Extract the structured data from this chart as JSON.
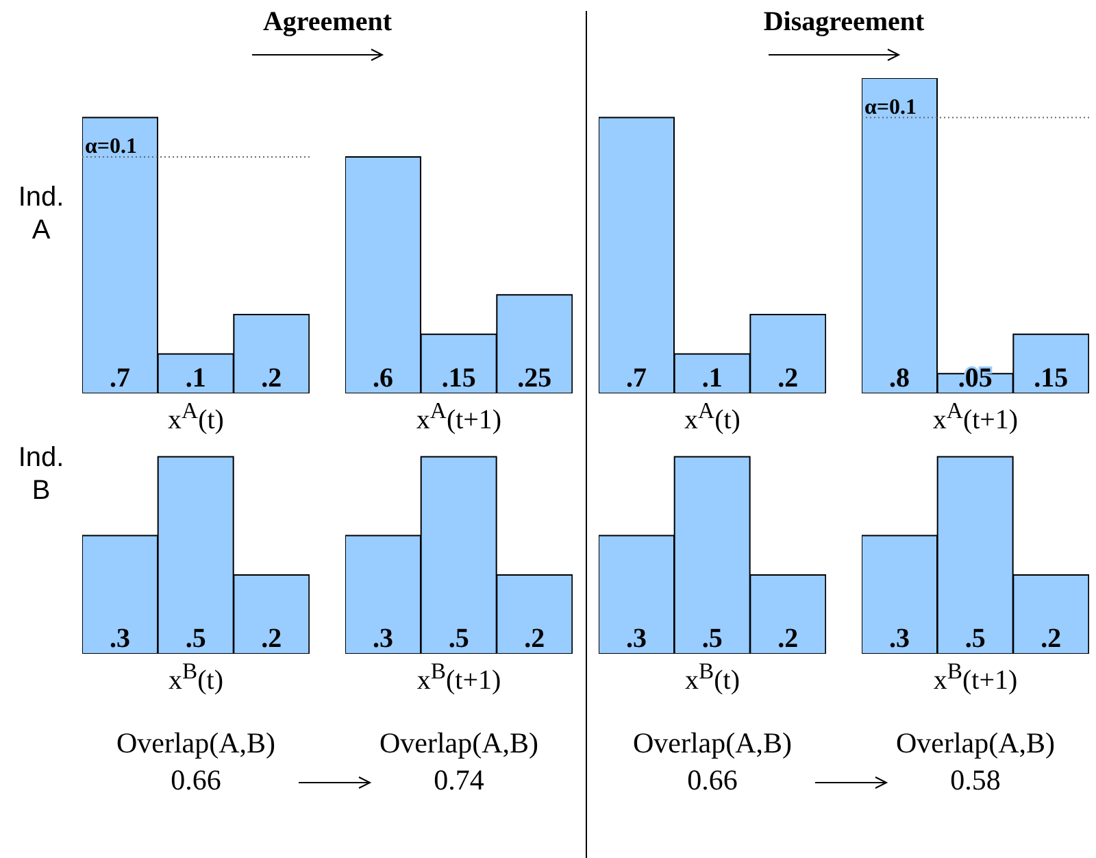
{
  "chart_data": [
    {
      "type": "bar",
      "title": "Agreement",
      "ylabel": "Ind. A",
      "xlabel": "x$^{A}$(t)",
      "categories": [
        null,
        null,
        null
      ],
      "values": [
        0.7,
        0.1,
        0.2
      ],
      "value_labels": [
        ".7",
        ".1",
        ".2"
      ],
      "color": "#99ccff",
      "ref_lines": [
        {
          "axis": "y",
          "value": 0.6,
          "line_style": "dotted"
        }
      ],
      "annotations": [
        {
          "text": "α=0.1",
          "y": 0.6
        }
      ]
    },
    {
      "type": "bar",
      "xlabel": "x$^{A}$(t+1)",
      "categories": [
        null,
        null,
        null
      ],
      "values": [
        0.6,
        0.15,
        0.25
      ],
      "value_labels": [
        ".6",
        ".15",
        ".25"
      ],
      "color": "#99ccff"
    },
    {
      "type": "bar",
      "title": "Disagreement",
      "xlabel": "x$^{A}$(t)",
      "categories": [
        null,
        null,
        null
      ],
      "values": [
        0.7,
        0.1,
        0.2
      ],
      "value_labels": [
        ".7",
        ".1",
        ".2"
      ],
      "color": "#99ccff"
    },
    {
      "type": "bar",
      "xlabel": "x$^{A}$(t+1)",
      "categories": [
        null,
        null,
        null
      ],
      "values": [
        0.8,
        0.05,
        0.15
      ],
      "value_labels": [
        ".8",
        ".05",
        ".15"
      ],
      "color": "#99ccff",
      "ref_lines": [
        {
          "axis": "y",
          "value": 0.7,
          "line_style": "dotted"
        }
      ],
      "annotations": [
        {
          "text": "α=0.1",
          "y": 0.7
        }
      ]
    },
    {
      "type": "bar",
      "ylabel": "Ind. B",
      "xlabel": "x$^{B}$(t)",
      "categories": [
        null,
        null,
        null
      ],
      "values": [
        0.3,
        0.5,
        0.2
      ],
      "value_labels": [
        ".3",
        ".5",
        ".2"
      ],
      "color": "#99ccff",
      "annotations": [
        "Overlap(A,B)",
        "0.66"
      ]
    },
    {
      "type": "bar",
      "xlabel": "x$^{B}$(t+1)",
      "categories": [
        null,
        null,
        null
      ],
      "values": [
        0.3,
        0.5,
        0.2
      ],
      "value_labels": [
        ".3",
        ".5",
        ".2"
      ],
      "color": "#99ccff",
      "annotations": [
        "Overlap(A,B)",
        "0.74"
      ]
    },
    {
      "type": "bar",
      "xlabel": "x$^{B}$(t)",
      "categories": [
        null,
        null,
        null
      ],
      "values": [
        0.3,
        0.5,
        0.2
      ],
      "value_labels": [
        ".3",
        ".5",
        ".2"
      ],
      "color": "#99ccff",
      "annotations": [
        "Overlap(A,B)",
        "0.66"
      ]
    },
    {
      "type": "bar",
      "xlabel": "x$^{B}$(t+1)",
      "categories": [
        null,
        null,
        null
      ],
      "values": [
        0.3,
        0.5,
        0.2
      ],
      "value_labels": [
        ".3",
        ".5",
        ".2"
      ],
      "color": "#99ccff",
      "annotations": [
        "Overlap(A,B)",
        "0.58"
      ]
    }
  ]
}
